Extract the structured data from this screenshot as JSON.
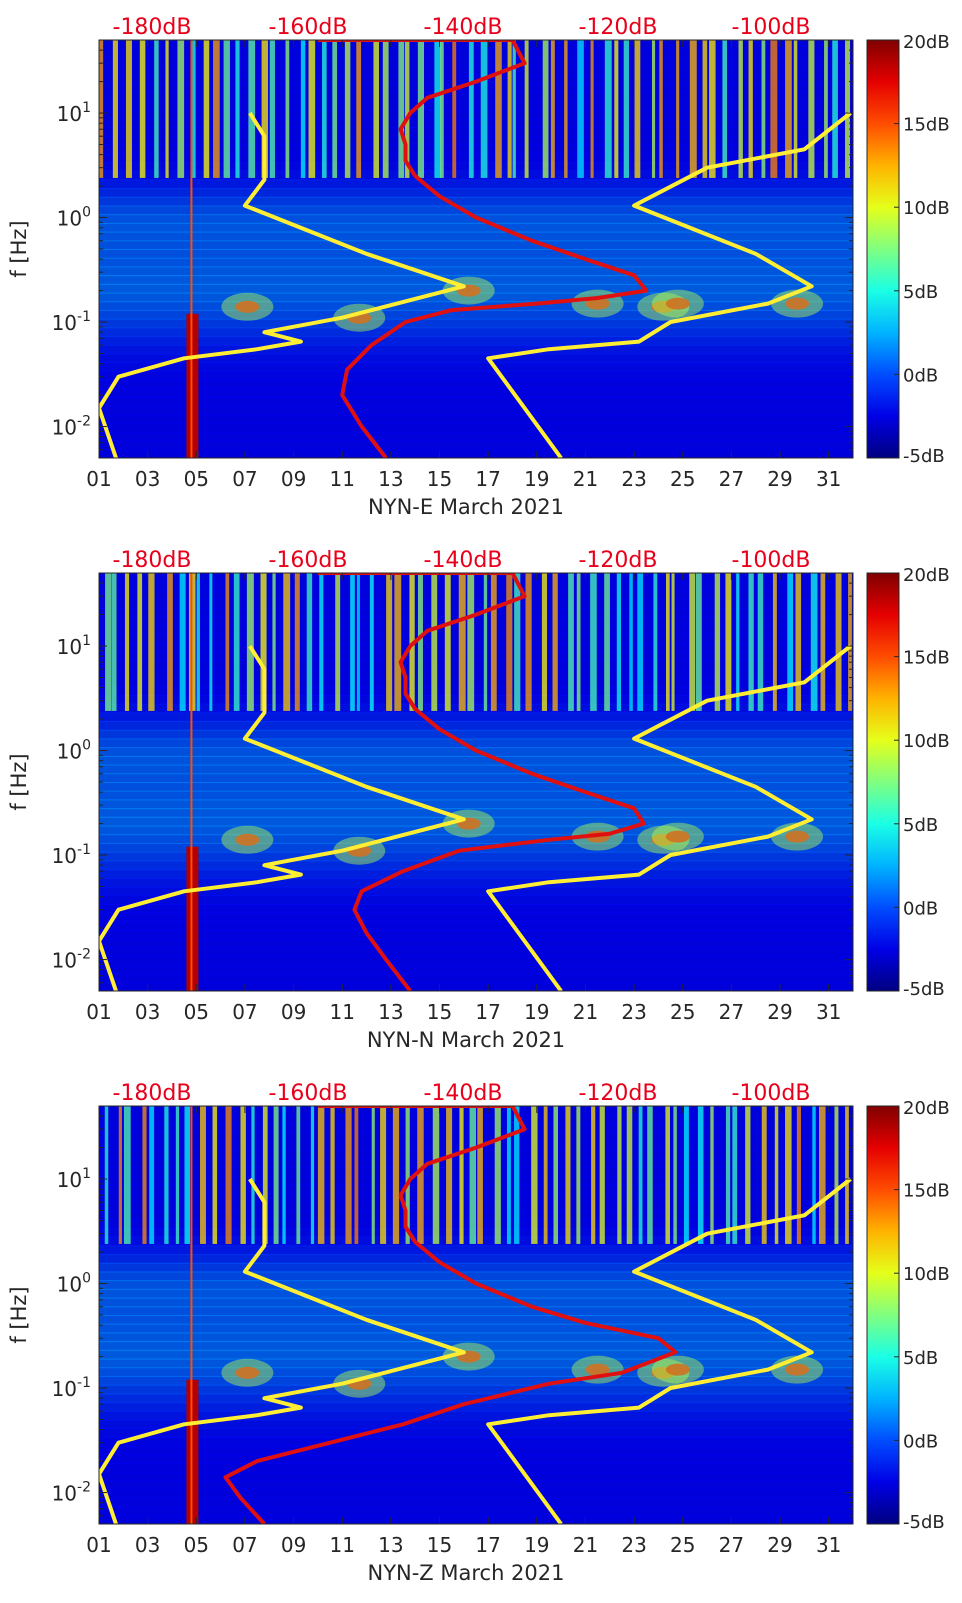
{
  "chart_data": [
    {
      "type": "heatmap",
      "station": "NYN-E",
      "xlabel": "NYN-E March 2021",
      "ylabel": "f [Hz]",
      "x_ticks": [
        "01",
        "03",
        "05",
        "07",
        "09",
        "11",
        "13",
        "15",
        "17",
        "19",
        "21",
        "23",
        "25",
        "27",
        "29",
        "31"
      ],
      "x_range_days": [
        1,
        32
      ],
      "y_scale": "log",
      "y_ticks": [
        {
          "base": "10",
          "exp": "1",
          "value": 10
        },
        {
          "base": "10",
          "exp": "0",
          "value": 1
        },
        {
          "base": "10",
          "exp": "-1",
          "value": 0.1
        },
        {
          "base": "10",
          "exp": "-2",
          "value": 0.01
        }
      ],
      "y_range_hz": [
        0.005,
        50
      ],
      "top_axis_ticks": [
        "-180dB",
        "-160dB",
        "-140dB",
        "-120dB",
        "-100dB"
      ],
      "colorbar_ticks": [
        "20dB",
        "15dB",
        "10dB",
        "5dB",
        "0dB",
        "-5dB"
      ],
      "colorbar_range_db": [
        -5,
        20
      ],
      "red_curve": [
        [
          12.8,
          0.005
        ],
        [
          11.8,
          0.01
        ],
        [
          11.0,
          0.02
        ],
        [
          11.2,
          0.035
        ],
        [
          12.2,
          0.06
        ],
        [
          13.6,
          0.1
        ],
        [
          15.5,
          0.13
        ],
        [
          19.0,
          0.15
        ],
        [
          21.5,
          0.17
        ],
        [
          23.5,
          0.2
        ],
        [
          23.0,
          0.28
        ],
        [
          21.0,
          0.4
        ],
        [
          18.8,
          0.6
        ],
        [
          16.5,
          1.0
        ],
        [
          15.0,
          1.6
        ],
        [
          14.0,
          2.5
        ],
        [
          13.6,
          3.5
        ],
        [
          13.6,
          5
        ],
        [
          13.4,
          7
        ],
        [
          13.8,
          10
        ],
        [
          14.5,
          14
        ],
        [
          16.5,
          20
        ],
        [
          18.5,
          30
        ],
        [
          18.0,
          50
        ],
        [
          10.0,
          50
        ]
      ],
      "yellow_curves": [
        [
          [
            1.7,
            0.005
          ],
          [
            1.0,
            0.015
          ],
          [
            1.8,
            0.03
          ],
          [
            4.5,
            0.045
          ],
          [
            7.5,
            0.055
          ],
          [
            9.3,
            0.065
          ],
          [
            7.8,
            0.08
          ],
          [
            11.0,
            0.11
          ],
          [
            16.0,
            0.22
          ],
          [
            12.0,
            0.45
          ],
          [
            7.0,
            1.3
          ],
          [
            7.8,
            2.3
          ],
          [
            7.8,
            6
          ],
          [
            7.2,
            10
          ]
        ],
        [
          [
            20.0,
            0.005
          ],
          [
            17.0,
            0.045
          ],
          [
            19.5,
            0.055
          ],
          [
            23.2,
            0.065
          ],
          [
            24.5,
            0.1
          ],
          [
            28.5,
            0.15
          ],
          [
            30.3,
            0.22
          ],
          [
            28.0,
            0.45
          ],
          [
            23.0,
            1.3
          ],
          [
            26.0,
            3.0
          ],
          [
            30.0,
            4.5
          ],
          [
            31.9,
            10
          ]
        ]
      ]
    },
    {
      "type": "heatmap",
      "station": "NYN-N",
      "xlabel": "NYN-N March 2021",
      "ylabel": "f [Hz]",
      "x_ticks": [
        "01",
        "03",
        "05",
        "07",
        "09",
        "11",
        "13",
        "15",
        "17",
        "19",
        "21",
        "23",
        "25",
        "27",
        "29",
        "31"
      ],
      "x_range_days": [
        1,
        32
      ],
      "y_scale": "log",
      "y_ticks": [
        {
          "base": "10",
          "exp": "1",
          "value": 10
        },
        {
          "base": "10",
          "exp": "0",
          "value": 1
        },
        {
          "base": "10",
          "exp": "-1",
          "value": 0.1
        },
        {
          "base": "10",
          "exp": "-2",
          "value": 0.01
        }
      ],
      "y_range_hz": [
        0.005,
        50
      ],
      "top_axis_ticks": [
        "-180dB",
        "-160dB",
        "-140dB",
        "-120dB",
        "-100dB"
      ],
      "colorbar_ticks": [
        "20dB",
        "15dB",
        "10dB",
        "5dB",
        "0dB",
        "-5dB"
      ],
      "colorbar_range_db": [
        -5,
        20
      ],
      "red_curve": [
        [
          13.8,
          0.005
        ],
        [
          12.8,
          0.01
        ],
        [
          12.0,
          0.018
        ],
        [
          11.5,
          0.03
        ],
        [
          11.8,
          0.045
        ],
        [
          13.5,
          0.07
        ],
        [
          15.8,
          0.11
        ],
        [
          19.5,
          0.14
        ],
        [
          22.0,
          0.16
        ],
        [
          23.4,
          0.2
        ],
        [
          23.0,
          0.28
        ],
        [
          21.0,
          0.4
        ],
        [
          18.8,
          0.6
        ],
        [
          16.5,
          1.0
        ],
        [
          15.0,
          1.6
        ],
        [
          14.0,
          2.5
        ],
        [
          13.6,
          3.5
        ],
        [
          13.6,
          5
        ],
        [
          13.4,
          7
        ],
        [
          13.8,
          10
        ],
        [
          14.5,
          14
        ],
        [
          16.5,
          20
        ],
        [
          18.5,
          30
        ],
        [
          18.0,
          50
        ],
        [
          10.0,
          50
        ]
      ],
      "yellow_curves": [
        [
          [
            1.7,
            0.005
          ],
          [
            1.0,
            0.015
          ],
          [
            1.8,
            0.03
          ],
          [
            4.5,
            0.045
          ],
          [
            7.5,
            0.055
          ],
          [
            9.3,
            0.065
          ],
          [
            7.8,
            0.08
          ],
          [
            11.0,
            0.11
          ],
          [
            16.0,
            0.22
          ],
          [
            12.0,
            0.45
          ],
          [
            7.0,
            1.3
          ],
          [
            7.8,
            2.3
          ],
          [
            7.8,
            6
          ],
          [
            7.2,
            10
          ]
        ],
        [
          [
            20.0,
            0.005
          ],
          [
            17.0,
            0.045
          ],
          [
            19.5,
            0.055
          ],
          [
            23.2,
            0.065
          ],
          [
            24.5,
            0.1
          ],
          [
            28.5,
            0.15
          ],
          [
            30.3,
            0.22
          ],
          [
            28.0,
            0.45
          ],
          [
            23.0,
            1.3
          ],
          [
            26.0,
            3.0
          ],
          [
            30.0,
            4.5
          ],
          [
            31.9,
            10
          ]
        ]
      ]
    },
    {
      "type": "heatmap",
      "station": "NYN-Z",
      "xlabel": "NYN-Z March 2021",
      "ylabel": "f [Hz]",
      "x_ticks": [
        "01",
        "03",
        "05",
        "07",
        "09",
        "11",
        "13",
        "15",
        "17",
        "19",
        "21",
        "23",
        "25",
        "27",
        "29",
        "31"
      ],
      "x_range_days": [
        1,
        32
      ],
      "y_scale": "log",
      "y_ticks": [
        {
          "base": "10",
          "exp": "1",
          "value": 10
        },
        {
          "base": "10",
          "exp": "0",
          "value": 1
        },
        {
          "base": "10",
          "exp": "-1",
          "value": 0.1
        },
        {
          "base": "10",
          "exp": "-2",
          "value": 0.01
        }
      ],
      "y_range_hz": [
        0.005,
        50
      ],
      "top_axis_ticks": [
        "-180dB",
        "-160dB",
        "-140dB",
        "-120dB",
        "-100dB"
      ],
      "colorbar_ticks": [
        "20dB",
        "15dB",
        "10dB",
        "5dB",
        "0dB",
        "-5dB"
      ],
      "colorbar_range_db": [
        -5,
        20
      ],
      "red_curve": [
        [
          7.8,
          0.005
        ],
        [
          6.8,
          0.009
        ],
        [
          6.2,
          0.014
        ],
        [
          7.5,
          0.02
        ],
        [
          10.5,
          0.03
        ],
        [
          13.5,
          0.045
        ],
        [
          16.0,
          0.07
        ],
        [
          19.5,
          0.11
        ],
        [
          22.5,
          0.14
        ],
        [
          24.7,
          0.22
        ],
        [
          24.0,
          0.3
        ],
        [
          21.0,
          0.42
        ],
        [
          18.8,
          0.6
        ],
        [
          16.5,
          1.0
        ],
        [
          15.0,
          1.6
        ],
        [
          14.0,
          2.5
        ],
        [
          13.6,
          3.5
        ],
        [
          13.6,
          5
        ],
        [
          13.4,
          7
        ],
        [
          13.8,
          10
        ],
        [
          14.5,
          14
        ],
        [
          16.5,
          20
        ],
        [
          18.5,
          30
        ],
        [
          18.0,
          50
        ],
        [
          10.0,
          50
        ]
      ],
      "yellow_curves": [
        [
          [
            1.7,
            0.005
          ],
          [
            1.0,
            0.015
          ],
          [
            1.8,
            0.03
          ],
          [
            4.5,
            0.045
          ],
          [
            7.5,
            0.055
          ],
          [
            9.3,
            0.065
          ],
          [
            7.8,
            0.08
          ],
          [
            11.0,
            0.11
          ],
          [
            16.0,
            0.22
          ],
          [
            12.0,
            0.45
          ],
          [
            7.0,
            1.3
          ],
          [
            7.8,
            2.3
          ],
          [
            7.8,
            6
          ],
          [
            7.2,
            10
          ]
        ],
        [
          [
            20.0,
            0.005
          ],
          [
            17.0,
            0.045
          ],
          [
            19.5,
            0.055
          ],
          [
            23.2,
            0.065
          ],
          [
            24.5,
            0.1
          ],
          [
            28.5,
            0.15
          ],
          [
            30.3,
            0.22
          ],
          [
            28.0,
            0.45
          ],
          [
            23.0,
            1.3
          ],
          [
            26.0,
            3.0
          ],
          [
            30.0,
            4.5
          ],
          [
            31.9,
            10
          ]
        ]
      ]
    }
  ]
}
